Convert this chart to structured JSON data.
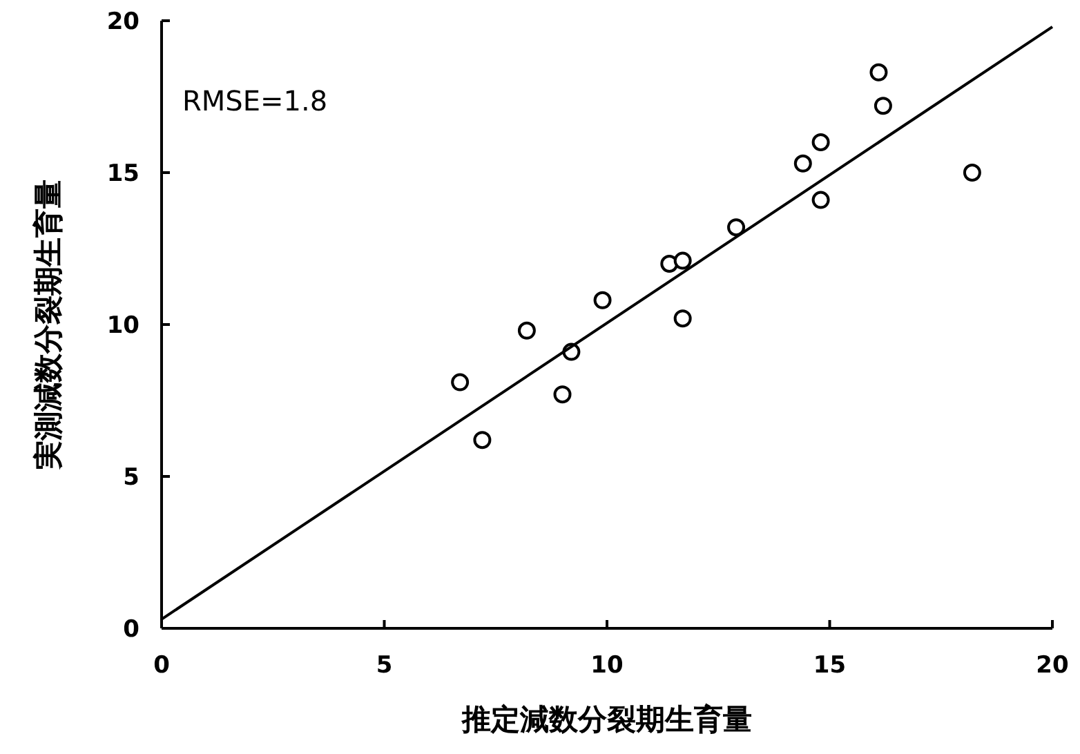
{
  "chart_data": {
    "type": "scatter",
    "xlabel": "推定減数分裂期生育量",
    "ylabel": "実測減数分裂期生育量",
    "annotations": [
      "RMSE=1.8"
    ],
    "xlim": [
      0,
      20
    ],
    "ylim": [
      0,
      20
    ],
    "xticks": [
      0,
      5,
      10,
      15,
      20
    ],
    "yticks": [
      0,
      5,
      10,
      15,
      20
    ],
    "series": [
      {
        "type": "scatter",
        "color": "#000000",
        "marker": "circle",
        "x": [
          6.7,
          7.2,
          8.2,
          9.0,
          9.2,
          9.9,
          11.4,
          11.7,
          11.7,
          12.9,
          14.4,
          14.8,
          14.8,
          16.1,
          16.2,
          18.2
        ],
        "values": [
          8.1,
          6.2,
          9.8,
          7.7,
          9.1,
          10.8,
          12.0,
          12.1,
          10.2,
          13.2,
          15.3,
          16.0,
          14.1,
          18.3,
          17.2,
          15.0
        ]
      },
      {
        "type": "line",
        "color": "#000000",
        "marker": "none",
        "line_style": "solid",
        "x": [
          0,
          20
        ],
        "values": [
          0.3,
          19.8
        ]
      }
    ]
  }
}
